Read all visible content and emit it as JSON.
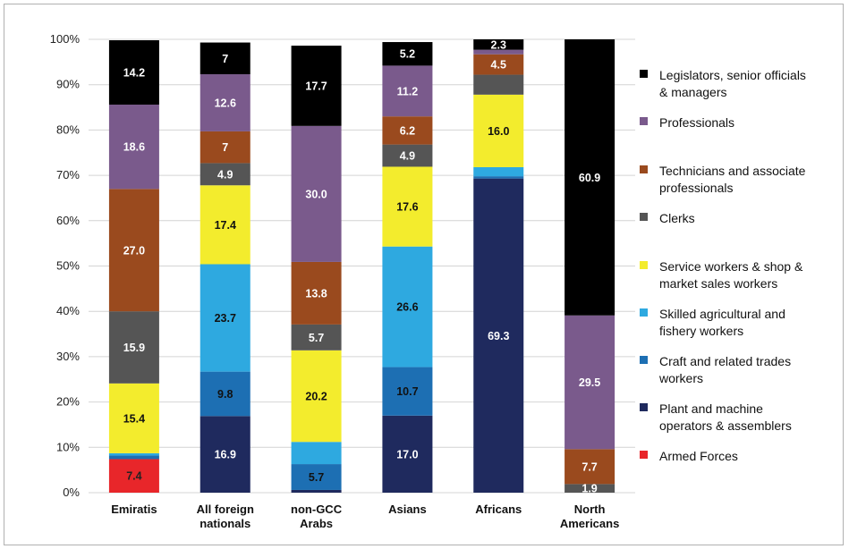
{
  "chart_data": {
    "type": "bar",
    "stacked": true,
    "categories": [
      [
        "Emiratis"
      ],
      [
        "All foreign",
        "nationals"
      ],
      [
        "non-GCC",
        "Arabs"
      ],
      [
        "Asians"
      ],
      [
        "Africans"
      ],
      [
        "North",
        "Americans"
      ]
    ],
    "ylim": [
      0,
      100
    ],
    "yticks": [
      "0%",
      "10%",
      "20%",
      "30%",
      "40%",
      "50%",
      "60%",
      "70%",
      "80%",
      "90%",
      "100%"
    ],
    "grid": true,
    "legend_position": "right",
    "series": [
      {
        "name": "Armed Forces",
        "color": "#e8262a",
        "label_color": "#222222",
        "values": [
          7.4,
          0,
          0,
          0,
          0,
          0
        ],
        "labels": [
          "7.4",
          "",
          "",
          "",
          "",
          ""
        ]
      },
      {
        "name": "Plant and machine operators & assemblers",
        "color": "#1f2a5e",
        "label_color": "#ffffff",
        "values": [
          0,
          16.9,
          0.6,
          17.0,
          69.3,
          0
        ],
        "labels": [
          "",
          "16.9",
          "",
          "17.0",
          "69.3",
          ""
        ]
      },
      {
        "name": "Craft and related trades workers",
        "color": "#1d6fb3",
        "label_color": "#111111",
        "values": [
          0.8,
          9.8,
          5.7,
          10.7,
          0.5,
          0
        ],
        "labels": [
          "",
          "9.8",
          "5.7",
          "10.7",
          "",
          ""
        ]
      },
      {
        "name": "Skilled agricultural and fishery workers",
        "color": "#2ea9e0",
        "label_color": "#111111",
        "values": [
          0.5,
          23.7,
          4.9,
          26.6,
          2.0,
          0
        ],
        "labels": [
          "",
          "23.7",
          "",
          "26.6",
          "",
          ""
        ]
      },
      {
        "name": "Service workers & shop & market sales workers",
        "color": "#f3ec2d",
        "label_color": "#111111",
        "values": [
          15.4,
          17.4,
          20.2,
          17.6,
          16.0,
          0
        ],
        "labels": [
          "15.4",
          "17.4",
          "20.2",
          "17.6",
          "16.0",
          ""
        ]
      },
      {
        "name": "Clerks",
        "color": "#555555",
        "label_color": "#ffffff",
        "values": [
          15.9,
          4.9,
          5.7,
          4.9,
          4.4,
          1.9
        ],
        "labels": [
          "15.9",
          "4.9",
          "5.7",
          "4.9",
          "",
          "1.9"
        ]
      },
      {
        "name": "Technicians and associate professionals",
        "color": "#9a4a1e",
        "label_color": "#ffffff",
        "values": [
          27.0,
          7,
          13.8,
          6.2,
          4.5,
          7.7
        ],
        "labels": [
          "27.0",
          "7",
          "13.8",
          "6.2",
          "4.5",
          "7.7"
        ]
      },
      {
        "name": "Professionals",
        "color": "#7a5a8c",
        "label_color": "#ffffff",
        "values": [
          18.6,
          12.6,
          30.0,
          11.2,
          1.0,
          29.5
        ],
        "labels": [
          "18.6",
          "12.6",
          "30.0",
          "11.2",
          "",
          "29.5"
        ]
      },
      {
        "name": "Legislators, senior officials & managers",
        "color": "#000000",
        "label_color": "#ffffff",
        "values": [
          14.2,
          7,
          17.7,
          5.2,
          2.3,
          60.9
        ],
        "labels": [
          "14.2",
          "7",
          "17.7",
          "5.2",
          "2.3",
          "60.9"
        ]
      }
    ],
    "legend": [
      {
        "lines": [
          "Legislators, senior officials",
          "& managers"
        ],
        "color": "#000000"
      },
      {
        "lines": [
          "Professionals"
        ],
        "color": "#7a5a8c"
      },
      {
        "lines": [
          "Technicians and associate",
          "professionals"
        ],
        "color": "#9a4a1e"
      },
      {
        "lines": [
          "Clerks"
        ],
        "color": "#555555"
      },
      {
        "lines": [
          "Service workers & shop &",
          "market sales workers"
        ],
        "color": "#f3ec2d"
      },
      {
        "lines": [
          "Skilled agricultural and",
          "fishery workers"
        ],
        "color": "#2ea9e0"
      },
      {
        "lines": [
          "Craft and related trades",
          "workers"
        ],
        "color": "#1d6fb3"
      },
      {
        "lines": [
          "Plant and machine",
          "operators & assemblers"
        ],
        "color": "#1f2a5e"
      },
      {
        "lines": [
          "Armed Forces"
        ],
        "color": "#e8262a"
      }
    ]
  }
}
